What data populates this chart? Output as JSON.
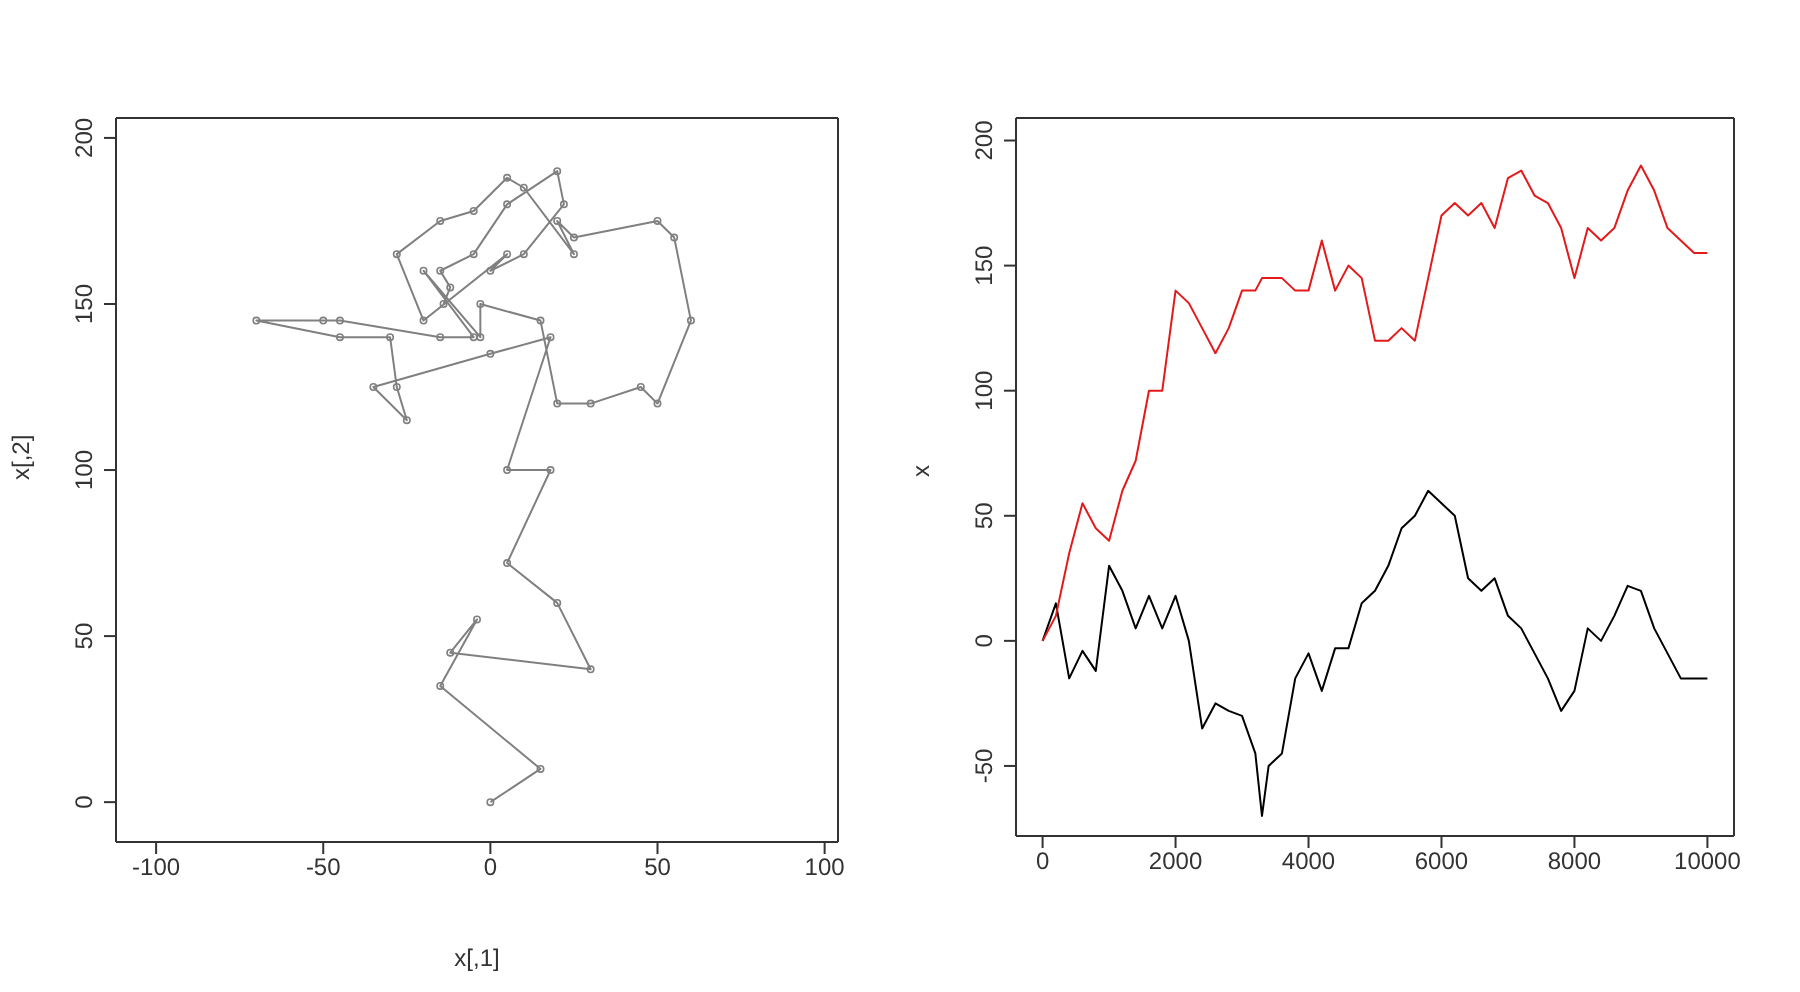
{
  "chart_data": [
    {
      "type": "line",
      "xlabel": "x[,1]",
      "ylabel": "x[,2]",
      "marker": "circle",
      "xlim": [
        -112,
        104
      ],
      "ylim": [
        -12,
        206
      ],
      "xticks": [
        -100,
        -50,
        0,
        50,
        100
      ],
      "yticks": [
        0,
        50,
        100,
        150,
        200
      ],
      "series": [
        {
          "color": "#808080",
          "x": [
            0,
            15,
            -15,
            -4,
            -12,
            30,
            20,
            5,
            18,
            5,
            18,
            0,
            -35,
            -25,
            -28,
            -30,
            -45,
            -70,
            -50,
            -45,
            -15,
            -5,
            -20,
            -3,
            -3,
            15,
            20,
            30,
            45,
            50,
            60,
            55,
            50,
            25,
            20,
            25,
            10,
            5,
            -5,
            -15,
            -28,
            -20,
            5,
            0,
            10,
            22,
            20,
            5,
            -5,
            -15,
            -12,
            -14
          ],
          "values": [
            0,
            10,
            35,
            55,
            45,
            40,
            60,
            72,
            100,
            100,
            140,
            135,
            125,
            115,
            125,
            140,
            140,
            145,
            145,
            145,
            140,
            140,
            160,
            140,
            150,
            145,
            120,
            120,
            125,
            120,
            145,
            170,
            175,
            170,
            175,
            165,
            185,
            188,
            178,
            175,
            165,
            145,
            165,
            160,
            165,
            180,
            190,
            180,
            165,
            160,
            155,
            150
          ]
        }
      ]
    },
    {
      "type": "line",
      "ylabel": "x",
      "xlim": [
        -400,
        10400
      ],
      "ylim": [
        -78,
        209
      ],
      "xticks": [
        0,
        2000,
        4000,
        6000,
        8000,
        10000
      ],
      "yticks": [
        -50,
        0,
        50,
        100,
        150,
        200
      ],
      "series": [
        {
          "color": "#000000",
          "x": [
            0,
            200,
            400,
            600,
            800,
            1000,
            1200,
            1400,
            1600,
            1800,
            2000,
            2200,
            2400,
            2600,
            2800,
            3000,
            3200,
            3300,
            3400,
            3600,
            3800,
            4000,
            4200,
            4400,
            4600,
            4800,
            5000,
            5200,
            5400,
            5600,
            5800,
            6000,
            6200,
            6400,
            6600,
            6800,
            7000,
            7200,
            7400,
            7600,
            7800,
            8000,
            8200,
            8400,
            8600,
            8800,
            9000,
            9200,
            9400,
            9600,
            9800,
            10000
          ],
          "values": [
            0,
            15,
            -15,
            -4,
            -12,
            30,
            20,
            5,
            18,
            5,
            18,
            0,
            -35,
            -25,
            -28,
            -30,
            -45,
            -70,
            -50,
            -45,
            -15,
            -5,
            -20,
            -3,
            -3,
            15,
            20,
            30,
            45,
            50,
            60,
            55,
            50,
            25,
            20,
            25,
            10,
            5,
            -5,
            -15,
            -28,
            -20,
            5,
            0,
            10,
            22,
            20,
            5,
            -5,
            -15,
            -15,
            -15
          ]
        },
        {
          "color": "#e31a1c",
          "x": [
            0,
            200,
            400,
            600,
            800,
            1000,
            1200,
            1400,
            1600,
            1800,
            2000,
            2200,
            2400,
            2600,
            2800,
            3000,
            3200,
            3300,
            3400,
            3600,
            3800,
            4000,
            4200,
            4400,
            4600,
            4800,
            5000,
            5200,
            5400,
            5600,
            5800,
            6000,
            6200,
            6400,
            6600,
            6800,
            7000,
            7200,
            7400,
            7600,
            7800,
            8000,
            8200,
            8400,
            8600,
            8800,
            9000,
            9200,
            9400,
            9600,
            9800,
            10000
          ],
          "values": [
            0,
            10,
            35,
            55,
            45,
            40,
            60,
            72,
            100,
            100,
            140,
            135,
            125,
            115,
            125,
            140,
            140,
            145,
            145,
            145,
            140,
            140,
            160,
            140,
            150,
            145,
            120,
            120,
            125,
            120,
            145,
            170,
            175,
            170,
            175,
            165,
            185,
            188,
            178,
            175,
            165,
            145,
            165,
            160,
            165,
            180,
            190,
            180,
            165,
            160,
            155,
            155
          ]
        }
      ]
    }
  ]
}
